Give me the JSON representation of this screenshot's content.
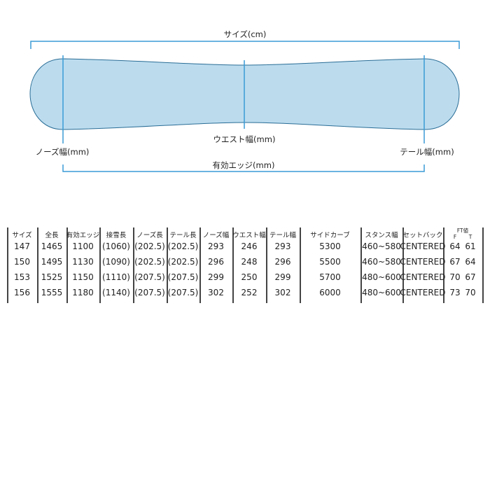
{
  "diagram": {
    "labels": {
      "size": "サイズ(cm)",
      "waist_width": "ウエスト幅(mm)",
      "nose_width": "ノーズ幅(mm)",
      "tail_width": "テール幅(mm)",
      "effective_edge": "有効エッジ(mm)"
    },
    "colors": {
      "board_fill": "#bcdcee",
      "board_outline": "#2a6d96",
      "dimension_line": "#3a9bd5"
    }
  },
  "table": {
    "headers": [
      "サイズ",
      "全長",
      "有効エッジ",
      "接雪長",
      "ノーズ長",
      "テール長",
      "ノーズ幅",
      "ウエスト幅",
      "テール幅",
      "サイドカーブ",
      "スタンス幅",
      "セットバック"
    ],
    "ft_header": {
      "title": "FT値",
      "f": "F",
      "t": "T"
    },
    "rows": [
      [
        "147",
        "1465",
        "1100",
        "(1060)",
        "(202.5)",
        "(202.5)",
        "293",
        "246",
        "293",
        "5300",
        "460~580",
        "CENTERED",
        "64",
        "61"
      ],
      [
        "150",
        "1495",
        "1130",
        "(1090)",
        "(202.5)",
        "(202.5)",
        "296",
        "248",
        "296",
        "5500",
        "460~580",
        "CENTERED",
        "67",
        "64"
      ],
      [
        "153",
        "1525",
        "1150",
        "(1110)",
        "(207.5)",
        "(207.5)",
        "299",
        "250",
        "299",
        "5700",
        "480~600",
        "CENTERED",
        "70",
        "67"
      ],
      [
        "156",
        "1555",
        "1180",
        "(1140)",
        "(207.5)",
        "(207.5)",
        "302",
        "252",
        "302",
        "6000",
        "480~600",
        "CENTERED",
        "73",
        "70"
      ]
    ]
  }
}
